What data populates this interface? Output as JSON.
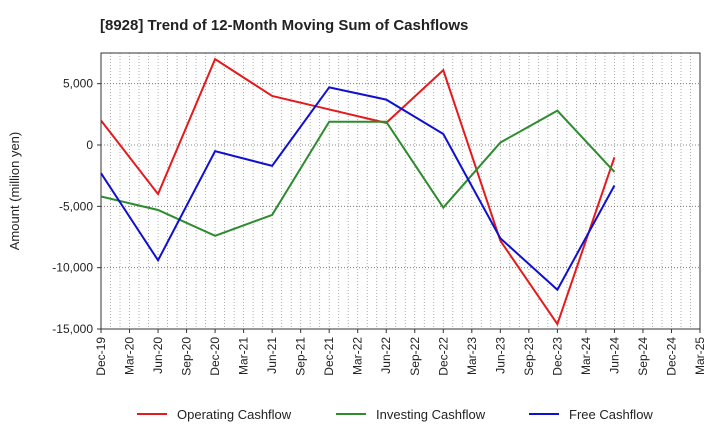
{
  "chart_data": {
    "type": "line",
    "title": "[8928]  Trend of 12-Month Moving Sum of Cashflows",
    "xlabel": "",
    "ylabel": "Amount (million yen)",
    "categories": [
      "Dec-19",
      "Mar-20",
      "Jun-20",
      "Sep-20",
      "Dec-20",
      "Mar-21",
      "Jun-21",
      "Sep-21",
      "Dec-21",
      "Mar-22",
      "Jun-22",
      "Sep-22",
      "Dec-22",
      "Mar-23",
      "Jun-23",
      "Sep-23",
      "Dec-23",
      "Mar-24",
      "Jun-24",
      "Sep-24",
      "Dec-24",
      "Mar-25"
    ],
    "ylim": [
      -15000,
      7500
    ],
    "yticks": [
      5000,
      0,
      -5000,
      -10000,
      -15000
    ],
    "ytick_labels": [
      "5,000",
      "0",
      "-5,000",
      "-10,000",
      "-15,000"
    ],
    "grid": true,
    "legend_position": "bottom",
    "series": [
      {
        "name": "Operating Cashflow",
        "color": "#e41a1c",
        "points": [
          {
            "x": "Dec-19",
            "y": 2000
          },
          {
            "x": "Jun-20",
            "y": -4000
          },
          {
            "x": "Dec-20",
            "y": 7000
          },
          {
            "x": "Jun-21",
            "y": 4000
          },
          {
            "x": "Dec-21",
            "y": 2900
          },
          {
            "x": "Jun-22",
            "y": 1800
          },
          {
            "x": "Dec-22",
            "y": 6100
          },
          {
            "x": "Jun-23",
            "y": -7800
          },
          {
            "x": "Dec-23",
            "y": -14600
          },
          {
            "x": "Jun-24",
            "y": -1000
          }
        ]
      },
      {
        "name": "Investing Cashflow",
        "color": "#2e8b2e",
        "points": [
          {
            "x": "Dec-19",
            "y": -4200
          },
          {
            "x": "Jun-20",
            "y": -5300
          },
          {
            "x": "Dec-20",
            "y": -7400
          },
          {
            "x": "Jun-21",
            "y": -5700
          },
          {
            "x": "Dec-21",
            "y": 1900
          },
          {
            "x": "Jun-22",
            "y": 1900
          },
          {
            "x": "Dec-22",
            "y": -5100
          },
          {
            "x": "Jun-23",
            "y": 200
          },
          {
            "x": "Dec-23",
            "y": 2800
          },
          {
            "x": "Jun-24",
            "y": -2200
          }
        ]
      },
      {
        "name": "Free Cashflow",
        "color": "#1010d0",
        "points": [
          {
            "x": "Dec-19",
            "y": -2300
          },
          {
            "x": "Jun-20",
            "y": -9400
          },
          {
            "x": "Dec-20",
            "y": -500
          },
          {
            "x": "Jun-21",
            "y": -1700
          },
          {
            "x": "Dec-21",
            "y": 4700
          },
          {
            "x": "Jun-22",
            "y": 3700
          },
          {
            "x": "Dec-22",
            "y": 900
          },
          {
            "x": "Jun-23",
            "y": -7600
          },
          {
            "x": "Dec-23",
            "y": -11800
          },
          {
            "x": "Jun-24",
            "y": -3300
          }
        ]
      }
    ]
  }
}
